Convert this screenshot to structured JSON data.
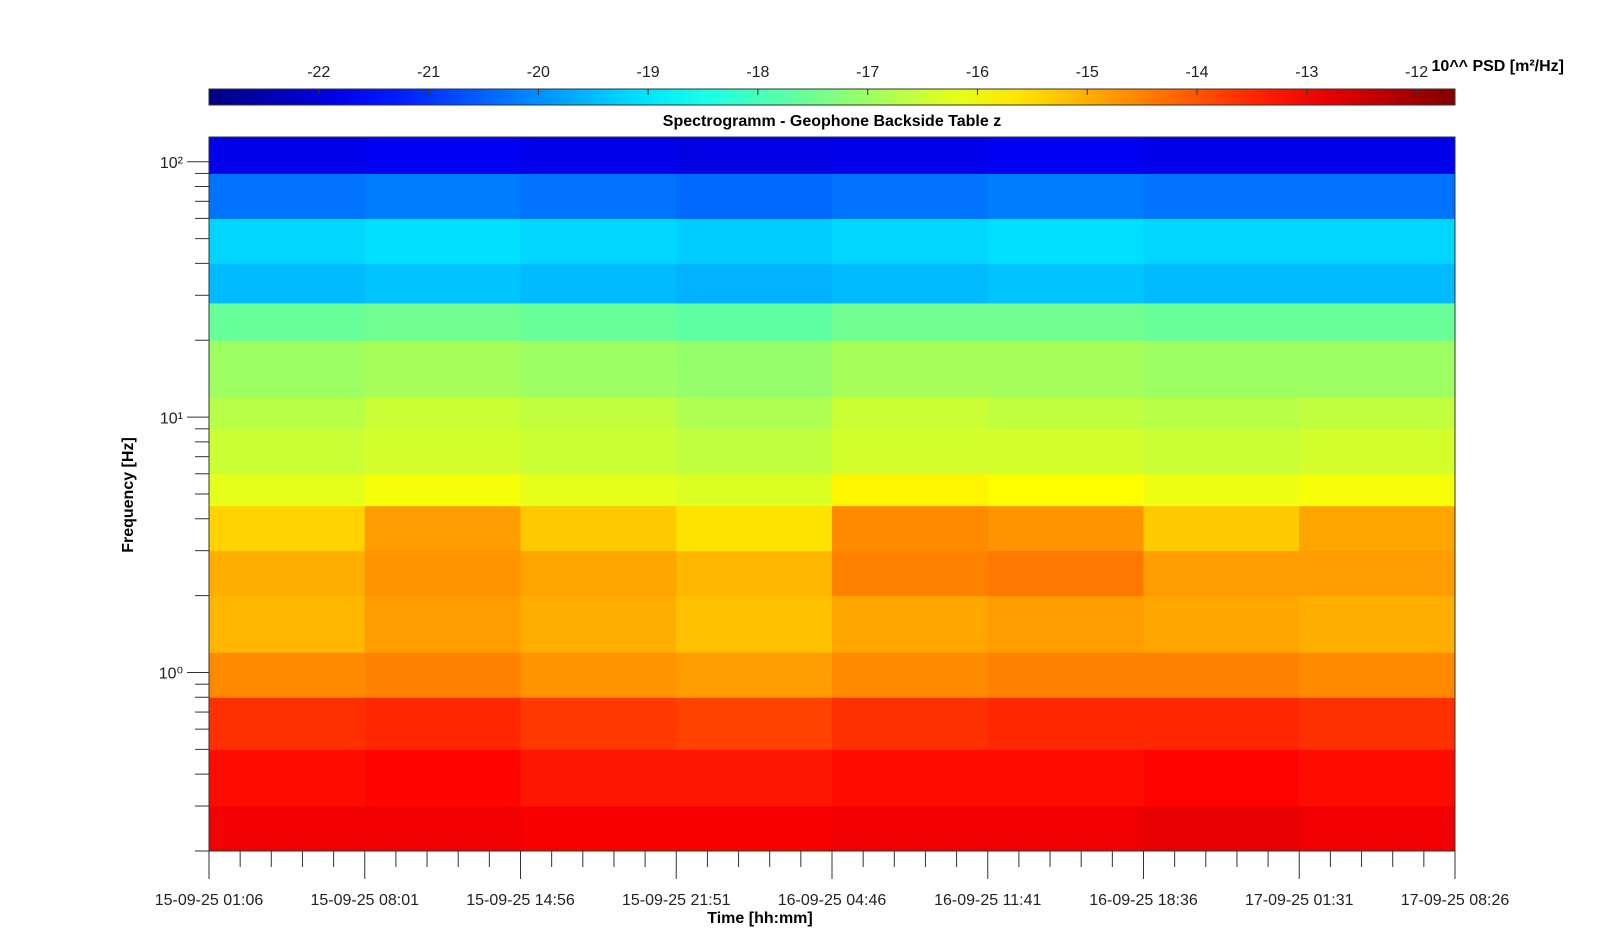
{
  "chart_data": {
    "type": "heatmap",
    "title": "Spectrogramm - Geophone Backside Table z",
    "x_label": "Time [hh:mm]",
    "y_label": "Frequency [Hz]",
    "colorbar_label": "10^^ PSD [m²/Hz]",
    "colormap": "jet",
    "y_log": true,
    "xlim": [
      "15-09-25 01:06",
      "17-09-25 08:26"
    ],
    "xticks": [
      "15-09-25 01:06",
      "15-09-25 08:01",
      "15-09-25 14:56",
      "15-09-25 21:51",
      "16-09-25 04:46",
      "16-09-25 11:41",
      "16-09-25 18:36",
      "17-09-25 01:31",
      "17-09-25 08:26"
    ],
    "ylim": [
      0.2,
      125
    ],
    "yticks": [
      {
        "value": 1,
        "label": "10⁰"
      },
      {
        "value": 10,
        "label": "10¹"
      },
      {
        "value": 100,
        "label": "10²"
      }
    ],
    "clim": [
      -23,
      -11.65
    ],
    "cticks": [
      -22,
      -21,
      -20,
      -19,
      -18,
      -17,
      -16,
      -15,
      -14,
      -13,
      -12
    ],
    "time_bins": [
      "15-09-25 01:06",
      "15-09-25 08:01",
      "15-09-25 14:56",
      "15-09-25 21:51",
      "16-09-25 04:46",
      "16-09-25 11:41",
      "16-09-25 18:36",
      "17-09-25 01:31",
      "17-09-25 08:26"
    ],
    "y_bins": [
      0.2,
      0.3,
      0.5,
      0.8,
      1.2,
      2,
      3,
      4.5,
      6,
      9,
      12,
      20,
      28,
      40,
      60,
      90,
      125
    ],
    "values": [
      [
        -12.9,
        -12.9,
        -13.0,
        -13.0,
        -12.9,
        -12.9,
        -12.8,
        -12.9
      ],
      [
        -13.2,
        -13.1,
        -13.3,
        -13.3,
        -13.2,
        -13.2,
        -13.1,
        -13.2
      ],
      [
        -13.6,
        -13.5,
        -13.7,
        -13.8,
        -13.6,
        -13.5,
        -13.5,
        -13.6
      ],
      [
        -14.6,
        -14.5,
        -14.7,
        -14.8,
        -14.6,
        -14.5,
        -14.5,
        -14.6
      ],
      [
        -15.1,
        -14.8,
        -15.0,
        -15.2,
        -14.9,
        -14.8,
        -14.9,
        -15.0
      ],
      [
        -15.0,
        -14.7,
        -14.9,
        -15.1,
        -14.5,
        -14.4,
        -14.8,
        -14.8
      ],
      [
        -15.4,
        -14.8,
        -15.3,
        -15.6,
        -14.6,
        -14.7,
        -15.3,
        -14.9
      ],
      [
        -16.2,
        -16.0,
        -16.2,
        -16.3,
        -15.8,
        -15.9,
        -16.1,
        -16.0
      ],
      [
        -16.5,
        -16.4,
        -16.5,
        -16.6,
        -16.4,
        -16.4,
        -16.5,
        -16.4
      ],
      [
        -16.7,
        -16.5,
        -16.6,
        -16.8,
        -16.5,
        -16.6,
        -16.7,
        -16.6
      ],
      [
        -17.0,
        -16.9,
        -17.0,
        -17.1,
        -16.9,
        -16.9,
        -17.0,
        -17.0
      ],
      [
        -17.6,
        -17.5,
        -17.6,
        -17.7,
        -17.5,
        -17.5,
        -17.6,
        -17.6
      ],
      [
        -19.5,
        -19.4,
        -19.5,
        -19.6,
        -19.5,
        -19.4,
        -19.5,
        -19.5
      ],
      [
        -19.2,
        -19.1,
        -19.2,
        -19.3,
        -19.2,
        -19.1,
        -19.2,
        -19.2
      ],
      [
        -20.3,
        -20.2,
        -20.3,
        -20.4,
        -20.3,
        -20.2,
        -20.3,
        -20.3
      ],
      [
        -21.8,
        -21.7,
        -21.8,
        -21.9,
        -21.8,
        -21.7,
        -21.8,
        -21.8
      ]
    ]
  }
}
